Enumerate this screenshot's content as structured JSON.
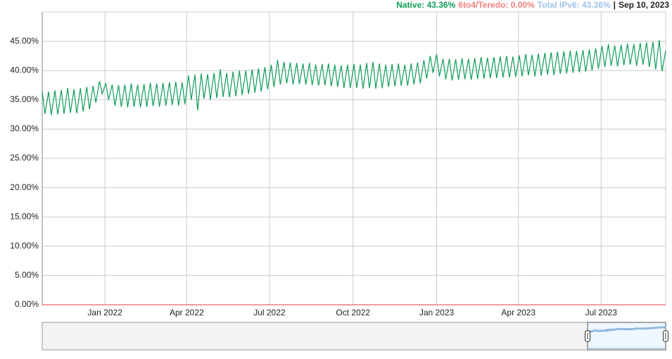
{
  "chart_data": {
    "type": "line",
    "readout": {
      "items": [
        {
          "text": "Native: 43.36%",
          "value": 43.36,
          "color": "#109d58"
        },
        {
          "text": "6to4/Teredo: 0.00%",
          "value": 0,
          "color": "#f07f7f"
        },
        {
          "text": "Total IPv6: 43.36%",
          "value": 43.36,
          "color": "#9fc3e6"
        }
      ],
      "separator": "|",
      "date": "Sep 10, 2023"
    },
    "x": [
      "2021-10-24",
      "2021-10-27",
      "2021-10-31",
      "2021-11-03",
      "2021-11-07",
      "2021-11-10",
      "2021-11-14",
      "2021-11-17",
      "2021-11-21",
      "2021-11-24",
      "2021-11-28",
      "2021-12-01",
      "2021-12-05",
      "2021-12-08",
      "2021-12-12",
      "2021-12-15",
      "2021-12-19",
      "2021-12-22",
      "2021-12-26",
      "2021-12-29",
      "2022-01-02",
      "2022-01-05",
      "2022-01-09",
      "2022-01-12",
      "2022-01-16",
      "2022-01-19",
      "2022-01-23",
      "2022-01-26",
      "2022-01-30",
      "2022-02-02",
      "2022-02-06",
      "2022-02-09",
      "2022-02-13",
      "2022-02-16",
      "2022-02-20",
      "2022-02-23",
      "2022-02-27",
      "2022-03-02",
      "2022-03-06",
      "2022-03-09",
      "2022-03-13",
      "2022-03-16",
      "2022-03-20",
      "2022-03-23",
      "2022-03-27",
      "2022-03-30",
      "2022-04-03",
      "2022-04-06",
      "2022-04-10",
      "2022-04-13",
      "2022-04-17",
      "2022-04-20",
      "2022-04-24",
      "2022-04-27",
      "2022-05-01",
      "2022-05-04",
      "2022-05-08",
      "2022-05-11",
      "2022-05-15",
      "2022-05-18",
      "2022-05-22",
      "2022-05-25",
      "2022-05-29",
      "2022-06-01",
      "2022-06-05",
      "2022-06-08",
      "2022-06-12",
      "2022-06-15",
      "2022-06-19",
      "2022-06-22",
      "2022-06-26",
      "2022-06-29",
      "2022-07-03",
      "2022-07-06",
      "2022-07-10",
      "2022-07-13",
      "2022-07-17",
      "2022-07-20",
      "2022-07-24",
      "2022-07-27",
      "2022-07-31",
      "2022-08-03",
      "2022-08-07",
      "2022-08-10",
      "2022-08-14",
      "2022-08-17",
      "2022-08-21",
      "2022-08-24",
      "2022-08-28",
      "2022-08-31",
      "2022-09-04",
      "2022-09-07",
      "2022-09-11",
      "2022-09-14",
      "2022-09-18",
      "2022-09-21",
      "2022-09-25",
      "2022-09-28",
      "2022-10-02",
      "2022-10-05",
      "2022-10-09",
      "2022-10-12",
      "2022-10-16",
      "2022-10-19",
      "2022-10-23",
      "2022-10-26",
      "2022-10-30",
      "2022-11-02",
      "2022-11-06",
      "2022-11-09",
      "2022-11-13",
      "2022-11-16",
      "2022-11-20",
      "2022-11-23",
      "2022-11-27",
      "2022-11-30",
      "2022-12-04",
      "2022-12-07",
      "2022-12-11",
      "2022-12-14",
      "2022-12-18",
      "2022-12-21",
      "2022-12-25",
      "2022-12-28",
      "2023-01-01",
      "2023-01-04",
      "2023-01-08",
      "2023-01-11",
      "2023-01-15",
      "2023-01-18",
      "2023-01-22",
      "2023-01-25",
      "2023-01-29",
      "2023-02-01",
      "2023-02-05",
      "2023-02-08",
      "2023-02-12",
      "2023-02-15",
      "2023-02-19",
      "2023-02-22",
      "2023-02-26",
      "2023-03-01",
      "2023-03-05",
      "2023-03-08",
      "2023-03-12",
      "2023-03-15",
      "2023-03-19",
      "2023-03-22",
      "2023-03-26",
      "2023-03-29",
      "2023-04-02",
      "2023-04-05",
      "2023-04-09",
      "2023-04-12",
      "2023-04-16",
      "2023-04-19",
      "2023-04-23",
      "2023-04-26",
      "2023-04-30",
      "2023-05-03",
      "2023-05-07",
      "2023-05-10",
      "2023-05-14",
      "2023-05-17",
      "2023-05-21",
      "2023-05-24",
      "2023-05-28",
      "2023-05-31",
      "2023-06-04",
      "2023-06-07",
      "2023-06-11",
      "2023-06-14",
      "2023-06-18",
      "2023-06-21",
      "2023-06-25",
      "2023-06-28",
      "2023-07-02",
      "2023-07-05",
      "2023-07-09",
      "2023-07-12",
      "2023-07-16",
      "2023-07-19",
      "2023-07-23",
      "2023-07-26",
      "2023-07-30",
      "2023-08-02",
      "2023-08-06",
      "2023-08-09",
      "2023-08-13",
      "2023-08-16",
      "2023-08-20",
      "2023-08-23",
      "2023-08-27",
      "2023-08-30",
      "2023-09-03",
      "2023-09-06",
      "2023-09-10"
    ],
    "series": [
      {
        "name": "Native",
        "color": "#109d58",
        "values": [
          36.5,
          32.6,
          36.4,
          32.4,
          36.6,
          32.5,
          36.7,
          32.6,
          37.0,
          32.8,
          36.8,
          32.7,
          37.0,
          33.0,
          37.2,
          33.4,
          37.4,
          34.5,
          38.2,
          36.0,
          37.8,
          35.0,
          37.6,
          34.0,
          37.5,
          33.8,
          37.6,
          33.7,
          37.8,
          33.8,
          37.6,
          33.7,
          37.7,
          33.8,
          37.9,
          33.9,
          37.8,
          33.8,
          37.9,
          34.0,
          38.0,
          34.1,
          38.1,
          34.0,
          38.0,
          34.2,
          39.2,
          35.0,
          39.3,
          33.2,
          39.5,
          35.2,
          39.4,
          35.0,
          39.6,
          35.3,
          40.2,
          35.5,
          39.6,
          35.4,
          39.8,
          35.6,
          40.0,
          35.8,
          40.0,
          36.0,
          40.2,
          36.2,
          40.4,
          36.4,
          40.6,
          36.8,
          41.0,
          37.2,
          41.8,
          37.6,
          41.5,
          37.8,
          41.4,
          37.6,
          41.3,
          37.7,
          41.2,
          37.6,
          41.3,
          37.5,
          41.0,
          37.4,
          41.1,
          37.5,
          41.2,
          37.3,
          41.0,
          37.2,
          40.9,
          37.0,
          41.0,
          37.0,
          41.1,
          37.0,
          41.0,
          36.9,
          41.3,
          37.0,
          41.5,
          36.9,
          41.2,
          37.0,
          41.0,
          37.2,
          41.1,
          37.3,
          41.2,
          37.4,
          41.0,
          37.4,
          41.2,
          37.6,
          41.4,
          37.8,
          41.8,
          38.6,
          42.5,
          39.6,
          42.8,
          39.0,
          42.0,
          38.5,
          42.0,
          38.3,
          41.9,
          38.4,
          42.1,
          38.5,
          42.0,
          38.4,
          42.1,
          38.6,
          42.3,
          38.6,
          42.2,
          38.7,
          42.3,
          38.7,
          42.4,
          38.8,
          42.5,
          38.8,
          42.4,
          38.9,
          42.6,
          39.0,
          42.8,
          39.2,
          42.7,
          39.0,
          42.9,
          39.1,
          43.0,
          39.3,
          43.1,
          39.2,
          43.2,
          39.4,
          43.3,
          39.5,
          43.4,
          39.6,
          43.4,
          39.7,
          43.5,
          39.8,
          43.6,
          40.0,
          43.8,
          40.3,
          44.2,
          40.6,
          44.5,
          40.8,
          44.3,
          40.7,
          44.4,
          40.9,
          44.6,
          41.0,
          44.5,
          40.8,
          44.7,
          41.0,
          44.8,
          40.6,
          44.9,
          40.2,
          45.2,
          39.9,
          43.36
        ]
      },
      {
        "name": "6to4/Teredo",
        "color": "#e06666",
        "x": [
          "2021-10-24",
          "2023-09-10"
        ],
        "values": [
          0,
          0
        ]
      }
    ],
    "xlim": [
      "2021-10-24",
      "2023-09-10"
    ],
    "xticks": [
      {
        "value": "2022-01-01",
        "label": "Jan 2022"
      },
      {
        "value": "2022-04-01",
        "label": "Apr 2022"
      },
      {
        "value": "2022-07-01",
        "label": "Jul 2022"
      },
      {
        "value": "2022-10-01",
        "label": "Oct 2022"
      },
      {
        "value": "2023-01-01",
        "label": "Jan 2023"
      },
      {
        "value": "2023-04-01",
        "label": "Apr 2023"
      },
      {
        "value": "2023-07-01",
        "label": "Jul 2023"
      }
    ],
    "ylim": [
      0,
      50
    ],
    "yticks": [
      {
        "value": 0,
        "label": "0.00%"
      },
      {
        "value": 5,
        "label": "5.00%"
      },
      {
        "value": 10,
        "label": "10.00%"
      },
      {
        "value": 15,
        "label": "15.00%"
      },
      {
        "value": 20,
        "label": "20.00%"
      },
      {
        "value": 25,
        "label": "25.00%"
      },
      {
        "value": 30,
        "label": "30.00%"
      },
      {
        "value": 35,
        "label": "35.00%"
      },
      {
        "value": 40,
        "label": "40.00%"
      },
      {
        "value": 45,
        "label": "45.00%"
      }
    ],
    "grid": true
  }
}
